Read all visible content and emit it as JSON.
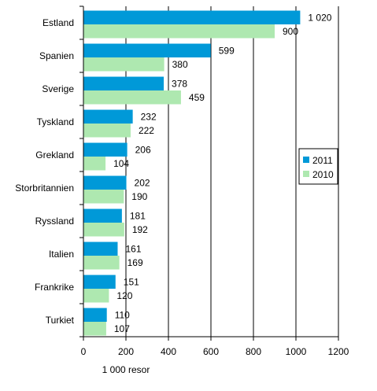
{
  "chart_data": {
    "type": "bar",
    "orientation": "horizontal",
    "title": "",
    "xlabel": "1 000 resor",
    "ylabel": "",
    "xlim": [
      0,
      1200
    ],
    "xticks": [
      0,
      200,
      400,
      600,
      800,
      1000,
      1200
    ],
    "grid": "vertical",
    "legend_position": "right",
    "categories": [
      "Estland",
      "Spanien",
      "Sverige",
      "Tyskland",
      "Grekland",
      "Storbritannien",
      "Ryssland",
      "Italien",
      "Frankrike",
      "Turkiet"
    ],
    "series": [
      {
        "name": "2011",
        "color": "#0099d8",
        "values": [
          1020,
          599,
          378,
          232,
          206,
          202,
          181,
          161,
          151,
          110
        ],
        "labels": [
          "1 020",
          "599",
          "378",
          "232",
          "206",
          "202",
          "181",
          "161",
          "151",
          "110"
        ]
      },
      {
        "name": "2010",
        "color": "#aee8b0",
        "values": [
          900,
          380,
          459,
          222,
          104,
          190,
          192,
          169,
          120,
          107
        ],
        "labels": [
          "900",
          "380",
          "459",
          "222",
          "104",
          "190",
          "192",
          "169",
          "120",
          "107"
        ]
      }
    ]
  }
}
